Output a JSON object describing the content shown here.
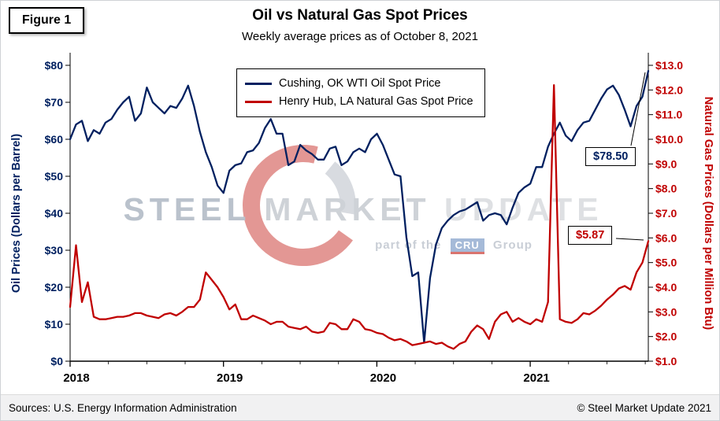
{
  "figure_label": "Figure 1",
  "title": "Oil vs Natural Gas Spot Prices",
  "subtitle": "Weekly average prices as of October 8, 2021",
  "annotations": {
    "oil_end": "$78.50",
    "gas_end": "$5.87"
  },
  "watermark": {
    "words": [
      "STEEL",
      "MARKET",
      "UPDATE"
    ],
    "tagline_prefix": "part of the",
    "tagline_logo": "CRU",
    "tagline_suffix": "Group"
  },
  "footer": {
    "sources": "Sources: U.S. Energy Information Administration",
    "copyright": "© Steel Market Update 2021"
  },
  "colors": {
    "oil": "#002060",
    "gas": "#C00000",
    "axis": "#000000",
    "footer_bg": "#f1f1f2"
  },
  "chart_data": {
    "type": "line",
    "title": "Oil vs Natural Gas Spot Prices",
    "subtitle": "Weekly average prices as of October 8, 2021",
    "grid": false,
    "legend_position": "top-center",
    "x_start": 2018.0,
    "x_end": 2021.77,
    "x_ticks": {
      "values": [
        2018,
        2019,
        2020,
        2021
      ],
      "labels": [
        "2018",
        "2019",
        "2020",
        "2021"
      ]
    },
    "left_axis": {
      "label": "Oil Prices (Dollars per Barrel)",
      "min": 0,
      "max": 80,
      "tick_values": [
        0,
        10,
        20,
        30,
        40,
        50,
        60,
        70,
        80
      ],
      "tick_labels": [
        "$0",
        "$10",
        "$20",
        "$30",
        "$40",
        "$50",
        "$60",
        "$70",
        "$80"
      ]
    },
    "right_axis": {
      "label": "Natural Gas Prices (Dollars per Million Btu)",
      "min": 1,
      "max": 13,
      "tick_values": [
        1,
        2,
        3,
        4,
        5,
        6,
        7,
        8,
        9,
        10,
        11,
        12,
        13
      ],
      "tick_labels": [
        "$1.0",
        "$2.0",
        "$3.0",
        "$4.0",
        "$5.0",
        "$6.0",
        "$7.0",
        "$8.0",
        "$9.0",
        "$10.0",
        "$11.0",
        "$12.0",
        "$13.0"
      ]
    },
    "sampling": "biweekly averages, Jan 2018 - Oct 8 2021",
    "series": [
      {
        "name": "Cushing, OK WTI Oil Spot Price",
        "axis": "left",
        "color": "#002060",
        "end_label": "$78.50",
        "values": [
          60,
          64,
          65,
          59.5,
          62.5,
          61.5,
          64.5,
          65.5,
          68,
          70,
          71.5,
          65,
          67,
          74,
          70,
          68.5,
          67,
          69,
          68.5,
          71,
          74.5,
          69,
          62,
          56.5,
          52.5,
          47.5,
          45.5,
          51.5,
          53,
          53.5,
          56.5,
          57,
          59,
          63,
          65.5,
          61.5,
          61.5,
          53,
          54,
          58.5,
          57,
          56,
          54.5,
          54.5,
          57.5,
          58,
          53,
          54,
          56.5,
          57.5,
          56.5,
          60,
          61.5,
          58.5,
          54.5,
          50.5,
          50,
          33.5,
          23,
          24,
          5,
          22.5,
          31.5,
          36,
          38,
          39.5,
          40.5,
          41,
          42,
          43,
          38,
          39.5,
          40,
          39.5,
          37,
          41.5,
          45.5,
          47,
          48,
          52.5,
          52.5,
          58,
          61.5,
          64.5,
          61,
          59.5,
          62.5,
          64.5,
          65,
          68,
          71,
          73.5,
          74.5,
          72,
          68,
          63.5,
          69,
          71.5,
          78.5
        ]
      },
      {
        "name": "Henry Hub, LA Natural Gas Spot Price",
        "axis": "right",
        "color": "#C00000",
        "end_label": "$5.87",
        "values": [
          3.2,
          5.7,
          3.4,
          4.2,
          2.8,
          2.7,
          2.7,
          2.75,
          2.8,
          2.8,
          2.85,
          2.95,
          2.95,
          2.85,
          2.8,
          2.75,
          2.9,
          2.95,
          2.85,
          3,
          3.2,
          3.2,
          3.5,
          4.6,
          4.3,
          4,
          3.6,
          3.1,
          3.3,
          2.7,
          2.7,
          2.85,
          2.75,
          2.65,
          2.5,
          2.6,
          2.6,
          2.4,
          2.35,
          2.3,
          2.4,
          2.2,
          2.15,
          2.2,
          2.55,
          2.5,
          2.3,
          2.3,
          2.7,
          2.6,
          2.3,
          2.25,
          2.15,
          2.1,
          1.95,
          1.85,
          1.9,
          1.8,
          1.65,
          1.7,
          1.75,
          1.8,
          1.7,
          1.75,
          1.6,
          1.5,
          1.7,
          1.8,
          2.2,
          2.45,
          2.3,
          1.9,
          2.6,
          2.9,
          3,
          2.6,
          2.75,
          2.6,
          2.5,
          2.7,
          2.6,
          3.4,
          12.2,
          2.7,
          2.6,
          2.55,
          2.7,
          2.95,
          2.9,
          3.05,
          3.25,
          3.5,
          3.7,
          3.95,
          4.05,
          3.9,
          4.6,
          5,
          5.87
        ]
      }
    ]
  }
}
